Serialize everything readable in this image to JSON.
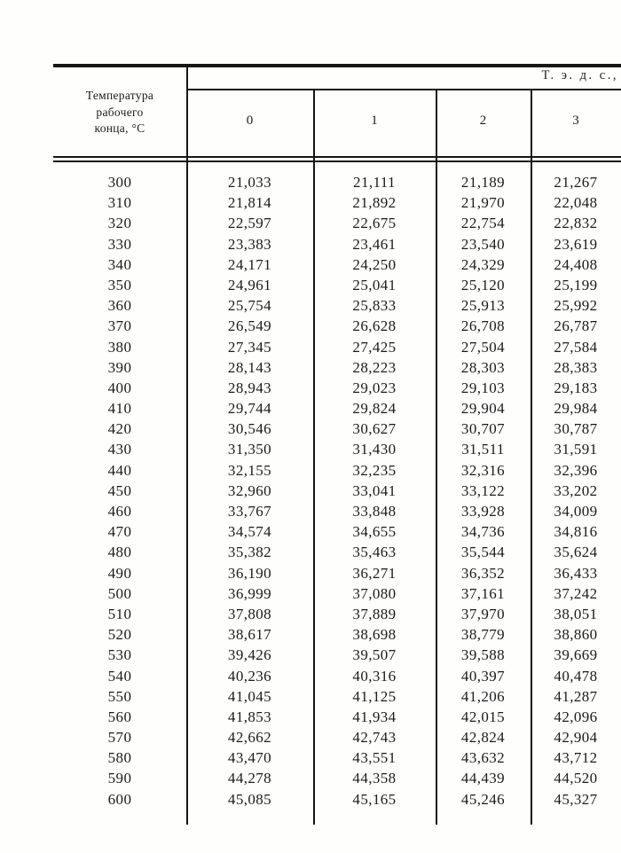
{
  "page": {
    "background": "#fefefd",
    "ink": "#1b1b1b"
  },
  "table": {
    "corner_header_lines": [
      "Температура",
      "рабочего",
      "конца, °С"
    ],
    "group_header": "Т. э. д. с.,",
    "column_headers": [
      "0",
      "1",
      "2",
      "3"
    ],
    "rows": [
      {
        "temp": "300",
        "values": [
          "21,033",
          "21,111",
          "21,189",
          "21,267"
        ]
      },
      {
        "temp": "310",
        "values": [
          "21,814",
          "21,892",
          "21,970",
          "22,048"
        ]
      },
      {
        "temp": "320",
        "values": [
          "22,597",
          "22,675",
          "22,754",
          "22,832"
        ]
      },
      {
        "temp": "330",
        "values": [
          "23,383",
          "23,461",
          "23,540",
          "23,619"
        ]
      },
      {
        "temp": "340",
        "values": [
          "24,171",
          "24,250",
          "24,329",
          "24,408"
        ]
      },
      {
        "temp": "350",
        "values": [
          "24,961",
          "25,041",
          "25,120",
          "25,199"
        ]
      },
      {
        "temp": "360",
        "values": [
          "25,754",
          "25,833",
          "25,913",
          "25,992"
        ]
      },
      {
        "temp": "370",
        "values": [
          "26,549",
          "26,628",
          "26,708",
          "26,787"
        ]
      },
      {
        "temp": "380",
        "values": [
          "27,345",
          "27,425",
          "27,504",
          "27,584"
        ]
      },
      {
        "temp": "390",
        "values": [
          "28,143",
          "28,223",
          "28,303",
          "28,383"
        ]
      },
      {
        "temp": "400",
        "values": [
          "28,943",
          "29,023",
          "29,103",
          "29,183"
        ]
      },
      {
        "temp": "410",
        "values": [
          "29,744",
          "29,824",
          "29,904",
          "29,984"
        ]
      },
      {
        "temp": "420",
        "values": [
          "30,546",
          "30,627",
          "30,707",
          "30,787"
        ]
      },
      {
        "temp": "430",
        "values": [
          "31,350",
          "31,430",
          "31,511",
          "31,591"
        ]
      },
      {
        "temp": "440",
        "values": [
          "32,155",
          "32,235",
          "32,316",
          "32,396"
        ]
      },
      {
        "temp": "450",
        "values": [
          "32,960",
          "33,041",
          "33,122",
          "33,202"
        ]
      },
      {
        "temp": "460",
        "values": [
          "33,767",
          "33,848",
          "33,928",
          "34,009"
        ]
      },
      {
        "temp": "470",
        "values": [
          "34,574",
          "34,655",
          "34,736",
          "34,816"
        ]
      },
      {
        "temp": "480",
        "values": [
          "35,382",
          "35,463",
          "35,544",
          "35,624"
        ]
      },
      {
        "temp": "490",
        "values": [
          "36,190",
          "36,271",
          "36,352",
          "36,433"
        ]
      },
      {
        "temp": "500",
        "values": [
          "36,999",
          "37,080",
          "37,161",
          "37,242"
        ]
      },
      {
        "temp": "510",
        "values": [
          "37,808",
          "37,889",
          "37,970",
          "38,051"
        ]
      },
      {
        "temp": "520",
        "values": [
          "38,617",
          "38,698",
          "38,779",
          "38,860"
        ]
      },
      {
        "temp": "530",
        "values": [
          "39,426",
          "39,507",
          "39,588",
          "39,669"
        ]
      },
      {
        "temp": "540",
        "values": [
          "40,236",
          "40,316",
          "40,397",
          "40,478"
        ]
      },
      {
        "temp": "550",
        "values": [
          "41,045",
          "41,125",
          "41,206",
          "41,287"
        ]
      },
      {
        "temp": "560",
        "values": [
          "41,853",
          "41,934",
          "42,015",
          "42,096"
        ]
      },
      {
        "temp": "570",
        "values": [
          "42,662",
          "42,743",
          "42,824",
          "42,904"
        ]
      },
      {
        "temp": "580",
        "values": [
          "43,470",
          "43,551",
          "43,632",
          "43,712"
        ]
      },
      {
        "temp": "590",
        "values": [
          "44,278",
          "44,358",
          "44,439",
          "44,520"
        ]
      },
      {
        "temp": "600",
        "values": [
          "45,085",
          "45,165",
          "45,246",
          "45,327"
        ]
      }
    ]
  }
}
